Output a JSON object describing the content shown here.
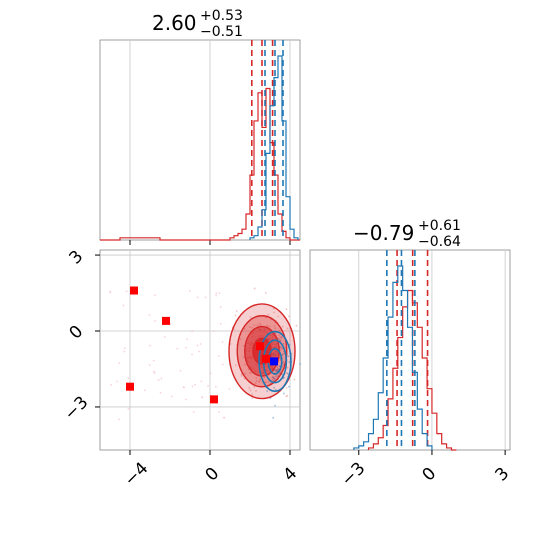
{
  "chart_data": [
    {
      "type": "histogram",
      "panel": "marginal-x",
      "title": {
        "main": "2.60",
        "plus": "+0.53",
        "minus": "−0.51"
      },
      "xlim": [
        -5.5,
        4.5
      ],
      "grid": true,
      "series": [
        {
          "color": "#d62728",
          "quantiles": [
            2.09,
            2.6,
            3.13
          ],
          "bins_x": [
            -5.5,
            -4.5,
            -3.5,
            -2.5,
            -1.5,
            -0.5,
            0.5,
            1.0,
            1.2,
            1.4,
            1.6,
            1.8,
            2.0,
            2.2,
            2.4,
            2.6,
            2.8,
            3.0,
            3.2,
            3.4,
            3.6,
            3.8,
            4.0,
            4.5
          ],
          "counts": [
            0,
            1,
            1,
            0,
            0,
            0,
            0,
            1,
            2,
            3,
            5,
            12,
            30,
            55,
            68,
            52,
            70,
            45,
            30,
            12,
            4,
            1,
            0
          ]
        },
        {
          "color": "#1f77b4",
          "quantiles": [
            2.75,
            3.25,
            3.65
          ],
          "bins_x": [
            2.0,
            2.2,
            2.4,
            2.6,
            2.8,
            3.0,
            3.2,
            3.4,
            3.6,
            3.8,
            4.0,
            4.2,
            4.4
          ],
          "counts": [
            1,
            2,
            6,
            14,
            40,
            62,
            75,
            85,
            55,
            20,
            5,
            1
          ]
        }
      ]
    },
    {
      "type": "scatter-contour",
      "panel": "joint",
      "xlim": [
        -5.5,
        4.5
      ],
      "ylim": [
        -4.7,
        3.2
      ],
      "xticks": [
        "−4",
        "0",
        "4"
      ],
      "xtick_values": [
        -4,
        0,
        4
      ],
      "yticks": [
        "3",
        "0",
        "−3"
      ],
      "ytick_values": [
        3,
        0,
        -3
      ],
      "grid": true,
      "red_squares": [
        {
          "x": -3.8,
          "y": 1.6
        },
        {
          "x": -2.2,
          "y": 0.4
        },
        {
          "x": -4.0,
          "y": -2.2
        },
        {
          "x": 0.2,
          "y": -2.7
        },
        {
          "x": 2.5,
          "y": -0.6
        },
        {
          "x": 2.8,
          "y": -1.1
        }
      ],
      "blue_squares": [
        {
          "x": 3.2,
          "y": -1.2
        }
      ],
      "red_contour_center": {
        "x": 2.6,
        "y": -0.8
      },
      "blue_contour_center": {
        "x": 3.25,
        "y": -1.2
      }
    },
    {
      "type": "histogram",
      "panel": "marginal-y",
      "title": {
        "main": "−0.79",
        "plus": "+0.61",
        "minus": "−0.64"
      },
      "xlim": [
        -5.0,
        3.2
      ],
      "xticks": [
        "−3",
        "0",
        "3"
      ],
      "xtick_values": [
        -3,
        0,
        3
      ],
      "grid": true,
      "series": [
        {
          "color": "#d62728",
          "quantiles": [
            -1.43,
            -0.79,
            -0.18
          ],
          "bins_x": [
            -2.6,
            -2.4,
            -2.2,
            -2.0,
            -1.8,
            -1.6,
            -1.4,
            -1.2,
            -1.0,
            -0.8,
            -0.6,
            -0.4,
            -0.2,
            0.0,
            0.2,
            0.4,
            0.6,
            0.8,
            1.0
          ],
          "counts": [
            1,
            3,
            6,
            12,
            25,
            40,
            55,
            70,
            78,
            72,
            60,
            45,
            30,
            18,
            8,
            3,
            1,
            0
          ]
        },
        {
          "color": "#1f77b4",
          "quantiles": [
            -1.85,
            -1.25,
            -0.7
          ],
          "bins_x": [
            -3.2,
            -3.0,
            -2.8,
            -2.6,
            -2.4,
            -2.2,
            -2.0,
            -1.8,
            -1.6,
            -1.4,
            -1.2,
            -1.0,
            -0.8,
            -0.6,
            -0.4,
            -0.2,
            0.0
          ],
          "counts": [
            1,
            2,
            4,
            8,
            15,
            28,
            45,
            65,
            82,
            90,
            78,
            60,
            38,
            20,
            8,
            2
          ]
        }
      ]
    }
  ]
}
